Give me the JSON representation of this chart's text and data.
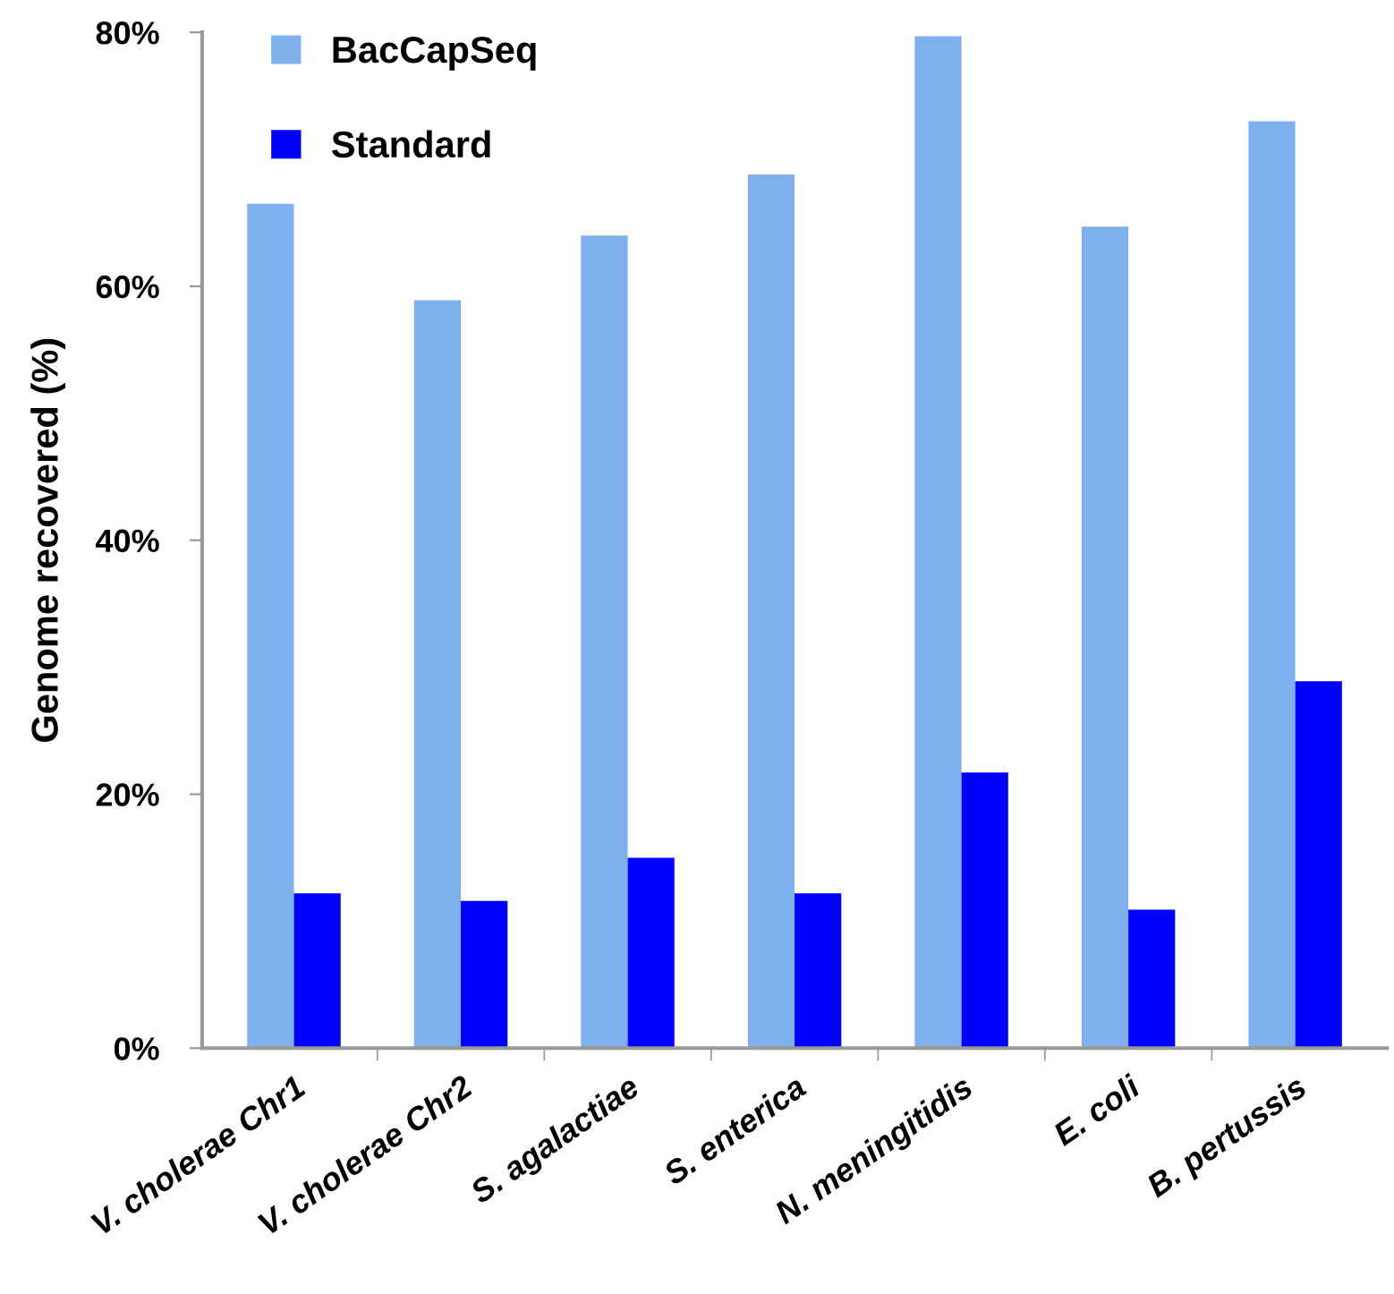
{
  "chart_data": {
    "type": "bar",
    "ylabel": "Genome recovered (%)",
    "categories": [
      "V. cholerae Chr1",
      "V. cholerae Chr2",
      "S. agalactiae",
      "S. enterica",
      "N. meningitidis",
      "E. coli",
      "B. pertussis"
    ],
    "series": [
      {
        "name": "BacCapSeq",
        "color": "#7fb0ee",
        "values": [
          66.5,
          58.9,
          64.0,
          68.8,
          79.7,
          64.7,
          73.0
        ]
      },
      {
        "name": "Standard",
        "color": "#0000ff",
        "values": [
          12.2,
          11.6,
          15.0,
          12.2,
          21.7,
          10.9,
          28.9
        ]
      }
    ],
    "ylim": [
      0,
      80
    ],
    "yticks": [
      {
        "value": 0,
        "label": "0%"
      },
      {
        "value": 20,
        "label": "20%"
      },
      {
        "value": 40,
        "label": "40%"
      },
      {
        "value": 60,
        "label": "60%"
      },
      {
        "value": 80,
        "label": "80%"
      }
    ],
    "grid": false,
    "legend": "top left"
  }
}
